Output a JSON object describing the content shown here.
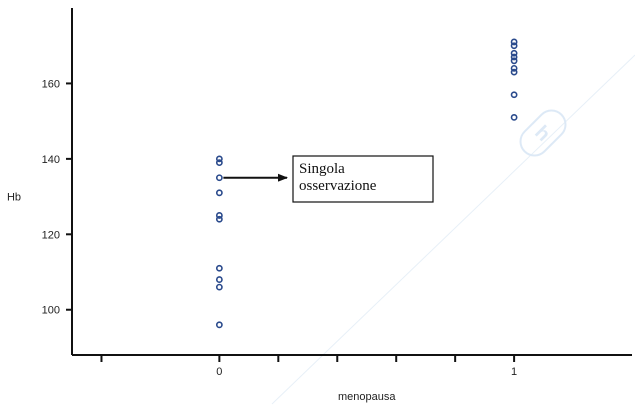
{
  "chart_data": {
    "type": "scatter",
    "xlabel": "menopausa",
    "ylabel": "Hb",
    "xlim": [
      -0.5,
      1.4
    ],
    "ylim": [
      88,
      180
    ],
    "x_ticks": [
      0,
      1
    ],
    "y_ticks": [
      100,
      120,
      140,
      160
    ],
    "grid": false,
    "marker_color": "#2a4a8c",
    "points": [
      {
        "x": 0,
        "y": 140
      },
      {
        "x": 0,
        "y": 139
      },
      {
        "x": 0,
        "y": 135
      },
      {
        "x": 0,
        "y": 131
      },
      {
        "x": 0,
        "y": 125
      },
      {
        "x": 0,
        "y": 124
      },
      {
        "x": 0,
        "y": 111
      },
      {
        "x": 0,
        "y": 108
      },
      {
        "x": 0,
        "y": 106
      },
      {
        "x": 0,
        "y": 96
      },
      {
        "x": 1,
        "y": 171
      },
      {
        "x": 1,
        "y": 170
      },
      {
        "x": 1,
        "y": 168
      },
      {
        "x": 1,
        "y": 167
      },
      {
        "x": 1,
        "y": 166
      },
      {
        "x": 1,
        "y": 164
      },
      {
        "x": 1,
        "y": 163
      },
      {
        "x": 1,
        "y": 157
      },
      {
        "x": 1,
        "y": 151
      }
    ],
    "annotation": {
      "lines": [
        "Singola",
        "osservazione"
      ],
      "points_to": {
        "x": 0,
        "y": 135
      }
    }
  }
}
